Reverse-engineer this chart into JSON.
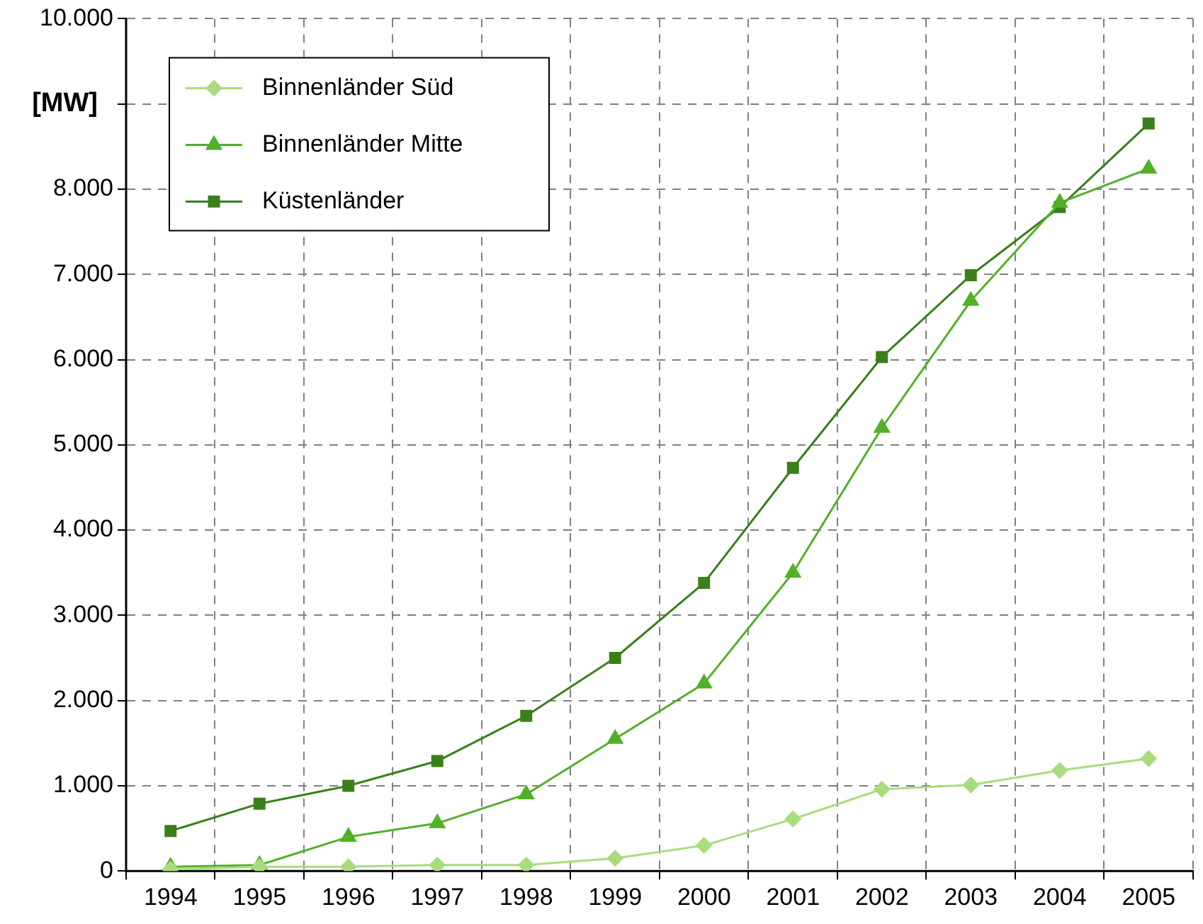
{
  "chart_data": {
    "type": "line",
    "ylabel": "[MW]",
    "categories": [
      "1994",
      "1995",
      "1996",
      "1997",
      "1998",
      "1999",
      "2000",
      "2001",
      "2002",
      "2003",
      "2004",
      "2005"
    ],
    "series": [
      {
        "name": "Binnenländer Süd",
        "color": "#a9dc7f",
        "marker": "diamond",
        "values": [
          20,
          50,
          50,
          70,
          70,
          150,
          300,
          610,
          960,
          1010,
          1180,
          1320
        ]
      },
      {
        "name": "Binnenländer Mitte",
        "color": "#52b028",
        "marker": "triangle",
        "values": [
          50,
          70,
          400,
          560,
          900,
          1550,
          2200,
          3500,
          5200,
          6690,
          7840,
          8240
        ]
      },
      {
        "name": "Küstenländer",
        "color": "#3b7f1a",
        "marker": "square",
        "values": [
          470,
          790,
          1000,
          1290,
          1820,
          2500,
          3380,
          4730,
          6030,
          6990,
          7790,
          8770
        ]
      }
    ],
    "ylim": [
      0,
      10000
    ],
    "yticks": [
      0,
      {
        "value": 1000,
        "label": "1.000"
      },
      {
        "value": 2000,
        "label": "2.000"
      },
      {
        "value": 3000,
        "label": "3.000"
      },
      {
        "value": 4000,
        "label": "4.000"
      },
      {
        "value": 5000,
        "label": "5.000"
      },
      {
        "value": 6000,
        "label": "6.000"
      },
      {
        "value": 7000,
        "label": "7.000"
      },
      {
        "value": 8000,
        "label": "8.000"
      },
      {
        "value": 9000,
        "label": null
      },
      {
        "value": 10000,
        "label": "10.000"
      }
    ],
    "grid": true,
    "legend": "top left",
    "line_style": "solid"
  }
}
